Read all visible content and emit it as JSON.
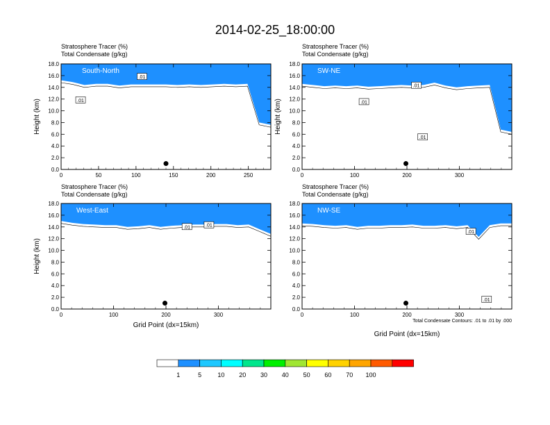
{
  "title": "2014-02-25_18:00:00",
  "colors": {
    "levels": [
      "#ffffff",
      "#1e90ff",
      "#1ec8ff",
      "#00ffff",
      "#00e68c",
      "#00f000",
      "#a0e632",
      "#ffff00",
      "#ffd200",
      "#ffa500",
      "#ff5a00",
      "#ff0000"
    ],
    "contour": "#000000",
    "site_marker": "#000000"
  },
  "chart_data": [
    {
      "type": "heatmap",
      "panel_label": "South-North",
      "header": [
        "Stratosphere Tracer   (%)",
        "Total Condensate   (g/kg)"
      ],
      "ylabel": "Height (km)",
      "xlabel": "",
      "xlim": [
        0,
        280
      ],
      "ylim": [
        0,
        18
      ],
      "xticks": [
        0,
        50,
        100,
        150,
        200,
        250
      ],
      "yticks": [
        "0.0",
        "2.0",
        "4.0",
        "6.0",
        "8.0",
        "10.0",
        "12.0",
        "14.0",
        "16.0",
        "18.0"
      ],
      "tracer_base_km": [
        15.2,
        14.9,
        14.4,
        14.6,
        14.6,
        14.3,
        14.5,
        14.5,
        14.5,
        14.5,
        14.4,
        14.5,
        14.4,
        14.5,
        14.6,
        14.5,
        14.6,
        8.0,
        7.6
      ],
      "contour_labels": [
        {
          "x": 26,
          "y": 11.8,
          "text": ".01"
        },
        {
          "x": 108,
          "y": 15.8,
          "text": ".01"
        }
      ],
      "site_marker": {
        "x": 140,
        "y": 1.0
      }
    },
    {
      "type": "heatmap",
      "panel_label": "SW-NE",
      "header": [
        "Stratosphere Tracer   (%)",
        "Total Condensate   (g/kg)"
      ],
      "ylabel": "Height (km)",
      "xlabel": "",
      "xlim": [
        0,
        400
      ],
      "ylim": [
        0,
        18
      ],
      "xticks": [
        0,
        100,
        200,
        300
      ],
      "yticks": [
        "0.0",
        "2.0",
        "4.0",
        "6.0",
        "8.0",
        "10.0",
        "12.0",
        "14.0",
        "16.0",
        "18.0"
      ],
      "tracer_base_km": [
        14.6,
        14.4,
        14.2,
        14.3,
        14.2,
        14.3,
        14.1,
        14.2,
        14.3,
        14.4,
        14.3,
        14.4,
        14.8,
        14.3,
        14.0,
        14.2,
        14.3,
        14.4,
        6.8,
        6.4
      ],
      "contour_labels": [
        {
          "x": 118,
          "y": 11.5,
          "text": ".01"
        },
        {
          "x": 218,
          "y": 14.3,
          "text": ".01"
        },
        {
          "x": 230,
          "y": 5.5,
          "text": ".01"
        }
      ],
      "site_marker": {
        "x": 198,
        "y": 1.0
      }
    },
    {
      "type": "heatmap",
      "panel_label": "West-East",
      "header": [
        "Stratosphere Tracer   (%)",
        "Total Condensate   (g/kg)"
      ],
      "ylabel": "Height (km)",
      "xlabel": "Grid Point (dx=15km)",
      "xlim": [
        0,
        400
      ],
      "ylim": [
        0,
        18
      ],
      "xticks": [
        0,
        100,
        200,
        300
      ],
      "yticks": [
        "0.0",
        "2.0",
        "4.0",
        "6.0",
        "8.0",
        "10.0",
        "12.0",
        "14.0",
        "16.0",
        "18.0"
      ],
      "tracer_base_km": [
        15.0,
        14.7,
        14.5,
        14.4,
        14.3,
        14.3,
        14.0,
        14.1,
        14.3,
        14.0,
        14.2,
        14.3,
        14.4,
        14.4,
        14.5,
        14.5,
        14.3,
        14.4,
        13.6,
        12.8
      ],
      "contour_labels": [
        {
          "x": 240,
          "y": 14.0,
          "text": ".01"
        },
        {
          "x": 282,
          "y": 14.3,
          "text": ".01"
        }
      ],
      "site_marker": {
        "x": 198,
        "y": 1.0
      }
    },
    {
      "type": "heatmap",
      "panel_label": "NW-SE",
      "header": [
        "Stratosphere Tracer   (%)",
        "Total Condensate   (g/kg)"
      ],
      "ylabel": "",
      "xlabel": "Grid Point (dx=15km)",
      "xlim": [
        0,
        400
      ],
      "ylim": [
        0,
        18
      ],
      "xticks": [
        0,
        100,
        200,
        300
      ],
      "yticks": [
        "0.0",
        "2.0",
        "4.0",
        "6.0",
        "8.0",
        "10.0",
        "12.0",
        "14.0",
        "16.0",
        "18.0"
      ],
      "tracer_base_km": [
        14.6,
        14.5,
        14.3,
        14.2,
        14.3,
        14.0,
        14.2,
        14.2,
        14.3,
        14.3,
        14.4,
        14.2,
        14.2,
        14.3,
        14.1,
        14.3,
        12.3,
        14.3,
        14.6,
        14.6
      ],
      "contour_labels": [
        {
          "x": 322,
          "y": 13.2,
          "text": ".01"
        },
        {
          "x": 352,
          "y": 1.6,
          "text": ".01"
        }
      ],
      "site_marker": {
        "x": 198,
        "y": 1.0
      },
      "footnote": "Total Condensate Contours: .01 to .01 by .000"
    }
  ],
  "legend": {
    "labels": [
      "1",
      "5",
      "10",
      "20",
      "30",
      "40",
      "50",
      "60",
      "70",
      "100"
    ]
  }
}
